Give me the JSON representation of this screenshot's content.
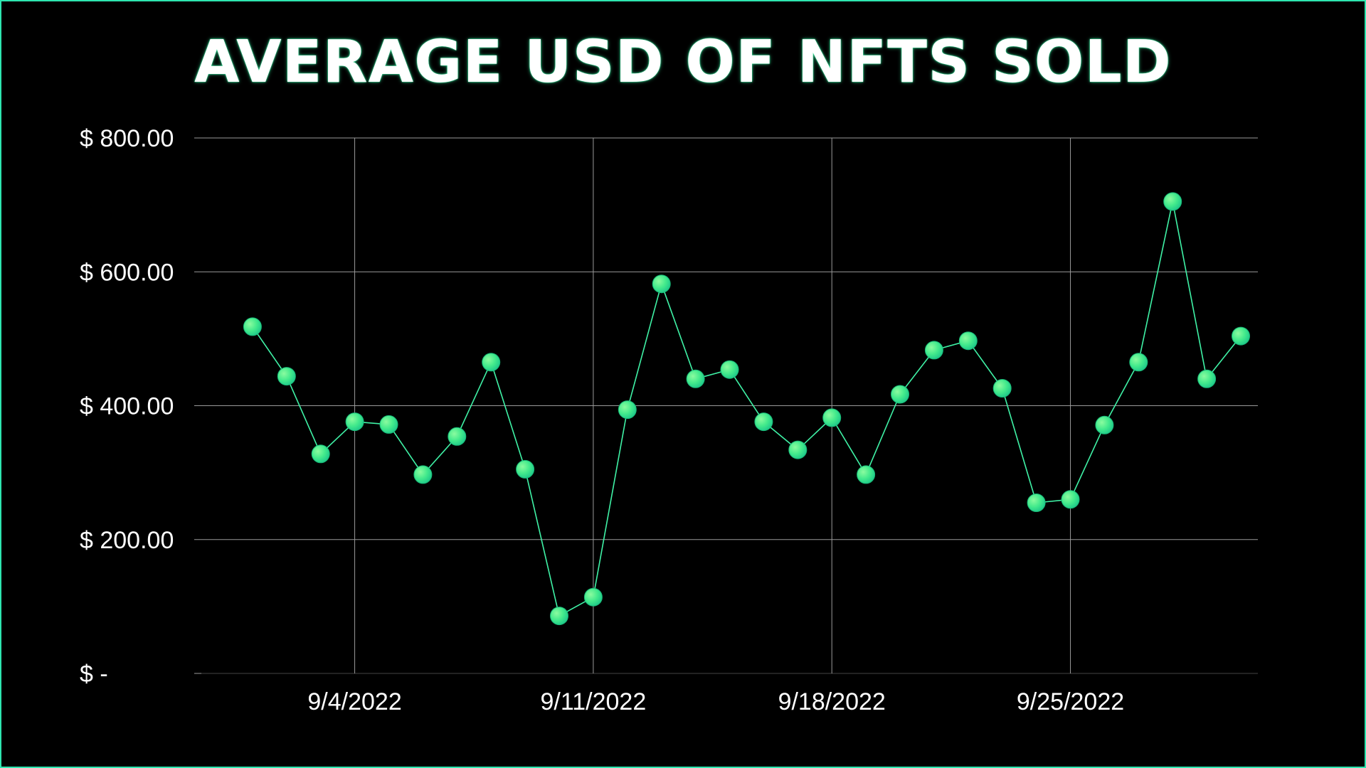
{
  "chart_data": {
    "type": "line",
    "title": "AVERAGE USD OF NFTS SOLD",
    "xlabel": "",
    "ylabel": "",
    "ylim": [
      0,
      800
    ],
    "y_ticks": [
      {
        "value": 0,
        "label": "$ -"
      },
      {
        "value": 200,
        "label": "$ 200.00"
      },
      {
        "value": 400,
        "label": "$ 400.00"
      },
      {
        "value": 600,
        "label": "$ 600.00"
      },
      {
        "value": 800,
        "label": "$ 800.00"
      }
    ],
    "x_ticks": [
      {
        "date": "2022-09-04",
        "label": "9/4/2022"
      },
      {
        "date": "2022-09-11",
        "label": "9/11/2022"
      },
      {
        "date": "2022-09-18",
        "label": "9/18/2022"
      },
      {
        "date": "2022-09-25",
        "label": "9/25/2022"
      }
    ],
    "xlim": [
      "2022-08-31",
      "2022-09-30"
    ],
    "grid": true,
    "legend": "none",
    "colors": {
      "background": "#000000",
      "line": "#3ff2a6",
      "marker_light": "#5ff78f",
      "marker_dark": "#1fd18a",
      "grid": "#9a9a9a",
      "border": "#2ee6b0"
    },
    "series": [
      {
        "points": [
          {
            "x": "2022-09-01",
            "y": 518
          },
          {
            "x": "2022-09-02",
            "y": 444
          },
          {
            "x": "2022-09-03",
            "y": 328
          },
          {
            "x": "2022-09-04",
            "y": 376
          },
          {
            "x": "2022-09-05",
            "y": 372
          },
          {
            "x": "2022-09-06",
            "y": 297
          },
          {
            "x": "2022-09-07",
            "y": 354
          },
          {
            "x": "2022-09-08",
            "y": 465
          },
          {
            "x": "2022-09-09",
            "y": 305
          },
          {
            "x": "2022-09-10",
            "y": 86
          },
          {
            "x": "2022-09-11",
            "y": 114
          },
          {
            "x": "2022-09-12",
            "y": 394
          },
          {
            "x": "2022-09-13",
            "y": 582
          },
          {
            "x": "2022-09-14",
            "y": 440
          },
          {
            "x": "2022-09-15",
            "y": 454
          },
          {
            "x": "2022-09-16",
            "y": 376
          },
          {
            "x": "2022-09-17",
            "y": 334
          },
          {
            "x": "2022-09-18",
            "y": 382
          },
          {
            "x": "2022-09-19",
            "y": 297
          },
          {
            "x": "2022-09-20",
            "y": 417
          },
          {
            "x": "2022-09-21",
            "y": 483
          },
          {
            "x": "2022-09-22",
            "y": 497
          },
          {
            "x": "2022-09-23",
            "y": 426
          },
          {
            "x": "2022-09-24",
            "y": 255
          },
          {
            "x": "2022-09-25",
            "y": 260
          },
          {
            "x": "2022-09-26",
            "y": 371
          },
          {
            "x": "2022-09-27",
            "y": 465
          },
          {
            "x": "2022-09-28",
            "y": 705
          },
          {
            "x": "2022-09-29",
            "y": 440
          },
          {
            "x": "2022-09-30",
            "y": 504
          }
        ]
      }
    ]
  }
}
